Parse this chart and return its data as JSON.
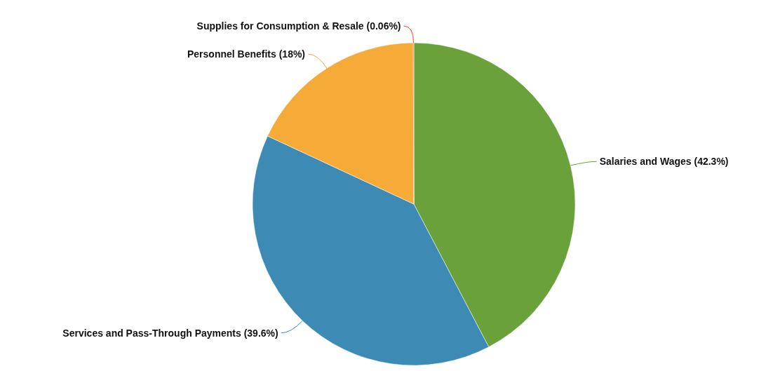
{
  "chart_data": {
    "type": "pie",
    "categories": [
      "Salaries and Wages",
      "Services and Pass-Through Payments",
      "Personnel Benefits",
      "Supplies for Consumption & Resale"
    ],
    "values": [
      42.3,
      39.6,
      18,
      0.06
    ],
    "value_labels": [
      "(42.3%)",
      "(39.6%)",
      "(18%)",
      "(0.06%)"
    ],
    "colors": [
      "#6aa13b",
      "#3d8bb5",
      "#f6aa37",
      "#e8452c"
    ]
  }
}
